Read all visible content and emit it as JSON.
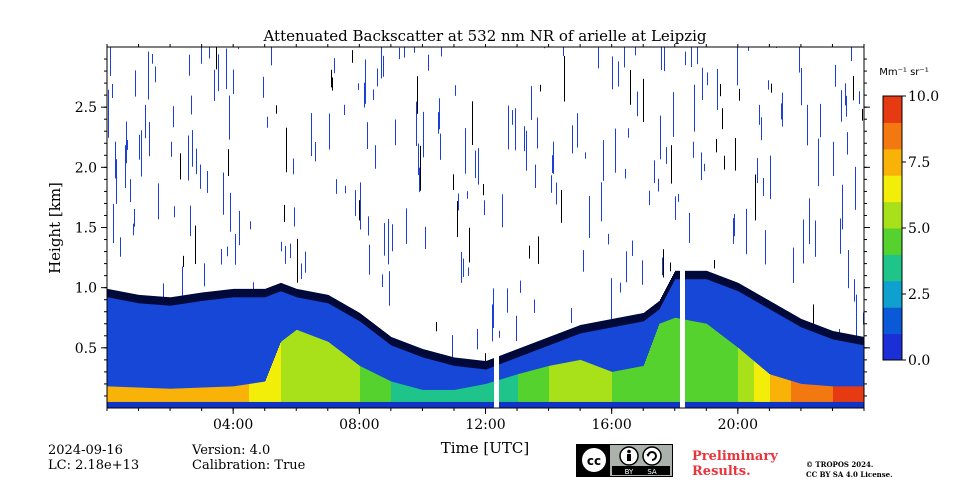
{
  "chart_data": {
    "type": "heatmap",
    "title": "Attenuated Backscatter at 532 nm NR of arielle at Leipzig",
    "xlabel": "Time [UTC]",
    "ylabel": "Height [km]",
    "xlim": [
      0,
      24
    ],
    "ylim": [
      0,
      3.0
    ],
    "x_ticks": [
      {
        "value": 4,
        "label": "04:00"
      },
      {
        "value": 8,
        "label": "08:00"
      },
      {
        "value": 12,
        "label": "12:00"
      },
      {
        "value": 16,
        "label": "16:00"
      },
      {
        "value": 20,
        "label": "20:00"
      }
    ],
    "y_ticks": [
      {
        "value": 0.5,
        "label": "0.5"
      },
      {
        "value": 1.0,
        "label": "1.0"
      },
      {
        "value": 1.5,
        "label": "1.5"
      },
      {
        "value": 2.0,
        "label": "2.0"
      },
      {
        "value": 2.5,
        "label": "2.5"
      }
    ],
    "colorbar": {
      "unit_label": "Mm⁻¹ sr⁻¹",
      "range": [
        0.0,
        10.0
      ],
      "ticks": [
        {
          "value": 0.0,
          "label": "0.0"
        },
        {
          "value": 2.5,
          "label": "2.5"
        },
        {
          "value": 5.0,
          "label": "5.0"
        },
        {
          "value": 7.5,
          "label": "7.5"
        },
        {
          "value": 10.0,
          "label": "10.0"
        }
      ],
      "colors": [
        "#1c2fd6",
        "#0a5ad8",
        "#0fa0cf",
        "#1ec48a",
        "#55d22e",
        "#a8e01a",
        "#f2ee0a",
        "#f8b208",
        "#f47810",
        "#e53a12"
      ]
    },
    "data_gaps_hours": [
      [
        12.25,
        12.4
      ],
      [
        18.15,
        18.3
      ]
    ],
    "layer_profile": {
      "time_hours": [
        0,
        1,
        2,
        3,
        4,
        5,
        5.5,
        6,
        7,
        8,
        9,
        10,
        11,
        12,
        13,
        14,
        15,
        16,
        17,
        17.5,
        18,
        19,
        20,
        21,
        22,
        23,
        24
      ],
      "boundary_layer_top_km": [
        0.95,
        0.9,
        0.88,
        0.92,
        0.95,
        0.95,
        1.0,
        0.95,
        0.9,
        0.75,
        0.55,
        0.45,
        0.38,
        0.35,
        0.45,
        0.55,
        0.65,
        0.7,
        0.75,
        0.85,
        1.1,
        1.1,
        1.0,
        0.85,
        0.7,
        0.6,
        0.55
      ],
      "aerosol_top_km": [
        0.18,
        0.17,
        0.16,
        0.17,
        0.18,
        0.22,
        0.55,
        0.65,
        0.55,
        0.35,
        0.22,
        0.15,
        0.15,
        0.2,
        0.28,
        0.35,
        0.4,
        0.3,
        0.35,
        0.7,
        0.75,
        0.7,
        0.5,
        0.28,
        0.2,
        0.18,
        0.18
      ],
      "aerosol_intensity_0_10": [
        7.5,
        7.5,
        7.5,
        7.5,
        7.5,
        6.5,
        6,
        5.5,
        5.5,
        5,
        4,
        3,
        3,
        3,
        4,
        5,
        5.5,
        5,
        4.5,
        4.5,
        4,
        4,
        5,
        7,
        8.5,
        9,
        9
      ]
    }
  },
  "footer": {
    "date": "2024-09-16",
    "lc": "LC: 2.18e+13",
    "version": "Version: 4.0",
    "calibration": "Calibration: True",
    "cc_by": "BY",
    "cc_sa": "SA",
    "preliminary_line1": "Preliminary",
    "preliminary_line2": "Results.",
    "copyright": "© TROPOS 2024.",
    "license": "CC BY SA 4.0 License."
  },
  "colors": {
    "preliminary": "#e8343a",
    "badge_bg": "#aab2ab"
  }
}
